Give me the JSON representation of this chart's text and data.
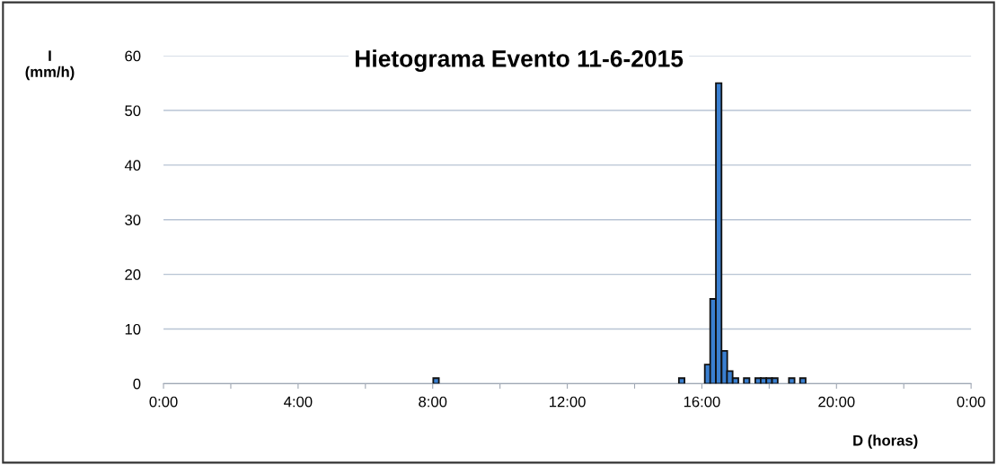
{
  "chart_data": {
    "type": "bar",
    "title": "Hietograma Evento 11-6-2015",
    "xlabel": "D (horas)",
    "ylabel": "I\n(mm/h)",
    "x": [
      8.1,
      15.4,
      16.17,
      16.33,
      16.5,
      16.67,
      16.83,
      17.0,
      17.33,
      17.67,
      17.83,
      18.0,
      18.17,
      18.67,
      19.0
    ],
    "values": [
      1,
      1,
      3.5,
      15.5,
      55,
      6,
      2.3,
      1,
      1,
      1,
      1,
      1,
      1,
      1,
      1
    ],
    "color": "#3a7fd0",
    "xlim": [
      0,
      24
    ],
    "xticks": [
      {
        "value": 0,
        "label": "0:00"
      },
      {
        "value": 2,
        "label": null
      },
      {
        "value": 4,
        "label": "4:00"
      },
      {
        "value": 6,
        "label": null
      },
      {
        "value": 8,
        "label": "8:00"
      },
      {
        "value": 10,
        "label": null
      },
      {
        "value": 12,
        "label": "12:00"
      },
      {
        "value": 14,
        "label": null
      },
      {
        "value": 16,
        "label": "16:00"
      },
      {
        "value": 18,
        "label": null
      },
      {
        "value": 20,
        "label": "20:00"
      },
      {
        "value": 22,
        "label": null
      },
      {
        "value": 24,
        "label": "0:00"
      }
    ],
    "ylim": [
      0,
      60
    ],
    "yticks": [
      0,
      10,
      20,
      30,
      40,
      50,
      60
    ],
    "grid": "y"
  }
}
